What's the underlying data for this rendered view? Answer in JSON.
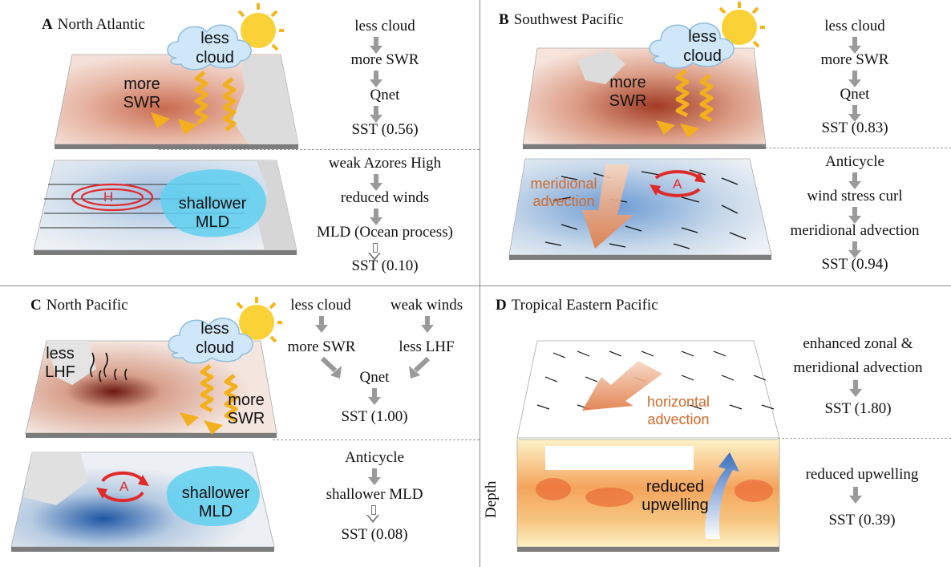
{
  "panels": {
    "a": {
      "letter": "A",
      "title": "North Atlantic",
      "cloud": "less\ncloud",
      "swr": "more\nSWR",
      "mld": "shallower\nMLD",
      "high": "H",
      "top_chain": [
        "less cloud",
        "more SWR",
        "Qnet",
        "SST (0.56)"
      ],
      "bottom_chain": [
        "weak Azores High",
        "reduced winds",
        "MLD (Ocean process)",
        "SST (0.10)"
      ]
    },
    "b": {
      "letter": "B",
      "title": "Southwest Pacific",
      "cloud": "less\ncloud",
      "swr": "more\nSWR",
      "anticyclone": "A",
      "advection": "meridional\nadvection",
      "top_chain": [
        "less cloud",
        "more SWR",
        "Qnet",
        "SST (0.83)"
      ],
      "bottom_chain": [
        "Anticycle",
        "wind stress curl",
        "meridional advection",
        "SST (0.94)"
      ]
    },
    "c": {
      "letter": "C",
      "title": "North Pacific",
      "cloud": "less\ncloud",
      "lhf": "less\nLHF",
      "swr": "more\nSWR",
      "anticyclone": "A",
      "mld": "shallower\nMLD",
      "left_chain": [
        "less cloud",
        "more SWR"
      ],
      "right_chain": [
        "weak winds",
        "less LHF"
      ],
      "top_merge": [
        "Qnet",
        "SST (1.00)"
      ],
      "bottom_chain": [
        "Anticycle",
        "shallower MLD",
        "SST (0.08)"
      ]
    },
    "d": {
      "letter": "D",
      "title": "Tropical Eastern Pacific",
      "advection": "horizontal\nadvection",
      "upwelling": "reduced\nupwelling",
      "depth": "Depth",
      "top_chain": [
        "enhanced zonal &",
        "meridional advection",
        "SST (1.80)"
      ],
      "bottom_chain": [
        "reduced upwelling",
        "SST (0.39)"
      ]
    }
  },
  "colors": {
    "warm": "#c0502f",
    "cool": "#2d6bb5",
    "orange_arrow": "#f3b01c",
    "advection": "#e08550",
    "cloud": "#c9e4f7",
    "mld_blob": "#5fd0f0",
    "divider": "#8a8a8a"
  }
}
